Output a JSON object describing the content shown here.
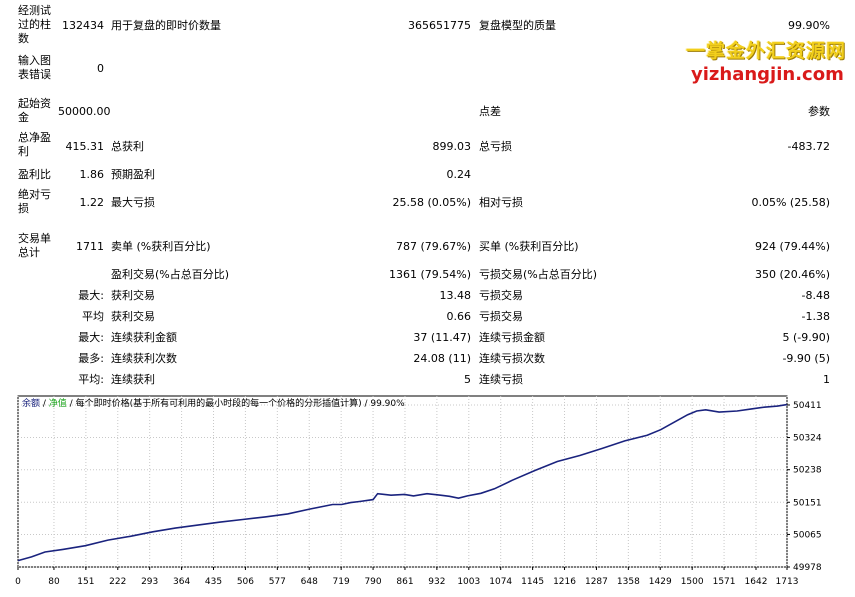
{
  "report": {
    "bars_label": "经测试过的柱数",
    "bars_value": "132434",
    "ticks_label": "用于复盘的即时价数量",
    "ticks_value": "365651775",
    "quality_label": "复盘模型的质量",
    "quality_value": "99.90%",
    "errors_label": "输入图表错误",
    "errors_value": "0",
    "deposit_label": "起始资金",
    "deposit_value": "50000.00",
    "spread_label": "点差",
    "spread_value": "参数",
    "net_profit_label": "总净盈利",
    "net_profit_value": "415.31",
    "gross_profit_label": "总获利",
    "gross_profit_value": "899.03",
    "gross_loss_label": "总亏损",
    "gross_loss_value": "-483.72",
    "profit_factor_label": "盈利比",
    "profit_factor_value": "1.86",
    "expected_payoff_label": "预期盈利",
    "expected_payoff_value": "0.24",
    "abs_dd_label": "绝对亏损",
    "abs_dd_value": "1.22",
    "max_dd_label": "最大亏损",
    "max_dd_value": "25.58 (0.05%)",
    "rel_dd_label": "相对亏损",
    "rel_dd_value": "0.05% (25.58)",
    "total_trades_label": "交易单总计",
    "total_trades_value": "1711",
    "short_label": "卖单 (%获利百分比)",
    "short_value": "787 (79.67%)",
    "long_label": "买单 (%获利百分比)",
    "long_value": "924 (79.44%)",
    "profit_trades_label": "盈利交易(%占总百分比)",
    "profit_trades_value": "1361 (79.54%)",
    "loss_trades_label": "亏损交易(%占总百分比)",
    "loss_trades_value": "350 (20.46%)",
    "largest_label": "最大:",
    "largest_profit_label": "获利交易",
    "largest_profit_value": "13.48",
    "largest_loss_label": "亏损交易",
    "largest_loss_value": "-8.48",
    "average_label": "平均",
    "average_profit_label": "获利交易",
    "average_profit_value": "0.66",
    "average_loss_label": "亏损交易",
    "average_loss_value": "-1.38",
    "max_cons_label": "最大:",
    "max_cons_wins_label": "连续获利金额",
    "max_cons_wins_value": "37 (11.47)",
    "max_cons_losses_label": "连续亏损金额",
    "max_cons_losses_value": "5 (-9.90)",
    "max_cons_most_label": "最多:",
    "max_cons_profit_label": "连续获利次数",
    "max_cons_profit_value": "24.08 (11)",
    "max_cons_loss_label": "连续亏损次数",
    "max_cons_loss_value": "-9.90 (5)",
    "avg_cons_label": "平均:",
    "avg_cons_wins_label": "连续获利",
    "avg_cons_wins_value": "5",
    "avg_cons_losses_label": "连续亏损",
    "avg_cons_losses_value": "1"
  },
  "watermark": {
    "line1": "一掌金外汇资源网",
    "line2": "yizhangjin.com"
  },
  "chart_data": {
    "type": "line",
    "legend": {
      "balance": "余额",
      "sep1": " / ",
      "equity": "净值",
      "sep2": " / ",
      "model": "每个即时价格(基于所有可利用的最小时段的每一个价格的分形插值计算)",
      "sep3": " / ",
      "quality": "99.90%"
    },
    "x_ticks": [
      0,
      80,
      151,
      222,
      293,
      364,
      435,
      506,
      577,
      648,
      719,
      790,
      861,
      932,
      1003,
      1074,
      1145,
      1216,
      1287,
      1358,
      1429,
      1500,
      1571,
      1642,
      1713
    ],
    "y_ticks": [
      49978,
      50065,
      50151,
      50238,
      50324,
      50411
    ],
    "xlim": [
      0,
      1711
    ],
    "ylim": [
      49978,
      50435
    ],
    "grid": true,
    "colors": {
      "balance": "#1a237e",
      "grid": "#c8c8c8"
    },
    "series": [
      {
        "name": "余额",
        "x": [
          0,
          30,
          60,
          100,
          150,
          200,
          250,
          300,
          350,
          400,
          450,
          500,
          550,
          600,
          650,
          700,
          720,
          740,
          760,
          790,
          800,
          830,
          860,
          880,
          910,
          940,
          960,
          980,
          1000,
          1030,
          1060,
          1100,
          1150,
          1200,
          1250,
          1300,
          1350,
          1400,
          1430,
          1460,
          1490,
          1510,
          1530,
          1560,
          1600,
          1630,
          1660,
          1690,
          1711
        ],
        "y": [
          49995,
          50005,
          50018,
          50025,
          50035,
          50050,
          50060,
          50072,
          50082,
          50090,
          50098,
          50105,
          50112,
          50120,
          50133,
          50145,
          50145,
          50150,
          50153,
          50158,
          50174,
          50170,
          50172,
          50168,
          50174,
          50170,
          50167,
          50162,
          50168,
          50175,
          50187,
          50210,
          50236,
          50260,
          50276,
          50295,
          50315,
          50330,
          50345,
          50365,
          50385,
          50395,
          50398,
          50392,
          50395,
          50400,
          50405,
          50408,
          50412
        ]
      }
    ]
  }
}
